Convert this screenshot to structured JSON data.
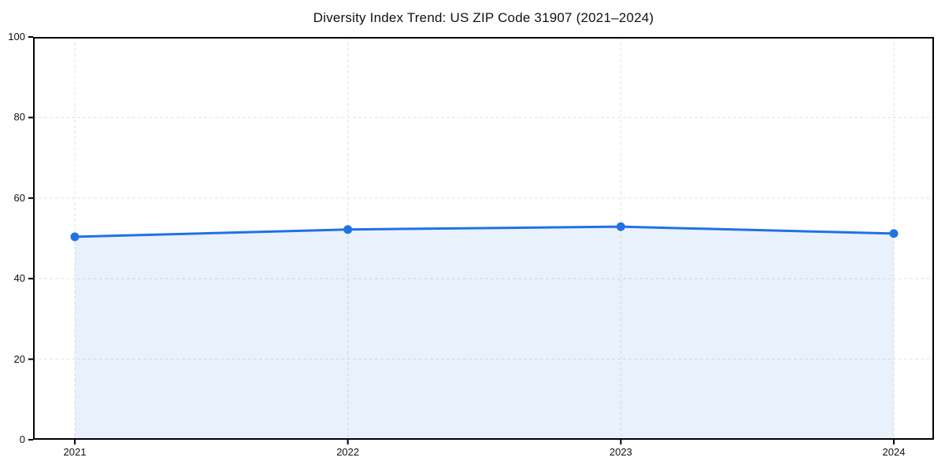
{
  "page": {
    "background": "#ffffff"
  },
  "chart_data": {
    "type": "area",
    "title": "Diversity Index Trend: US ZIP Code 31907 (2021–2024)",
    "x_categories": [
      "2021",
      "2022",
      "2023",
      "2024"
    ],
    "series": [
      {
        "name": "Diversity Index",
        "values": [
          50.4,
          52.2,
          52.9,
          51.2
        ]
      }
    ],
    "xlabel": "",
    "ylabel": "",
    "ylim": [
      0,
      100
    ],
    "y_ticks": [
      0,
      20,
      40,
      60,
      80,
      100
    ],
    "grid": true,
    "grid_style": "dashed",
    "legend": false,
    "markers": true,
    "colors": {
      "line": "#2171e3",
      "marker": "#2171e3",
      "fill": "rgba(33,113,227,0.10)",
      "grid": "#e3e3e3",
      "axis_frame": "#000000",
      "text": "#111111"
    }
  }
}
